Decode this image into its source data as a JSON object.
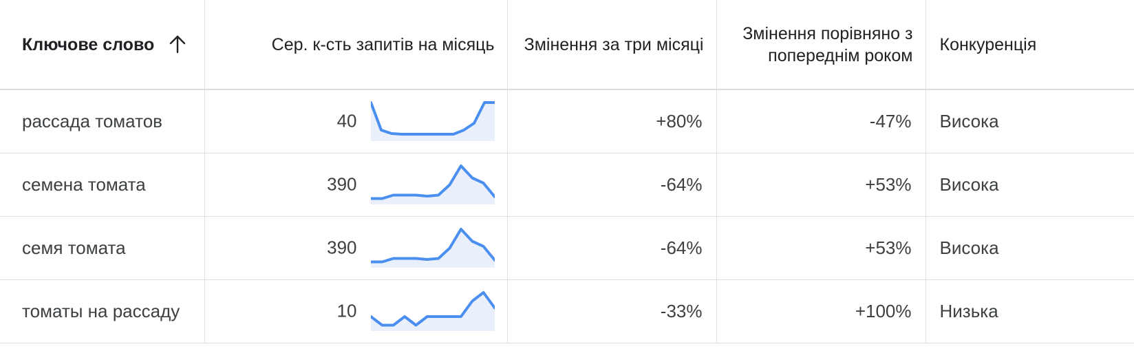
{
  "table": {
    "headers": {
      "keyword": "Ключове слово",
      "volume": "Сер. к-сть запитів на місяць",
      "three_month": "Змінення за три місяці",
      "yoy": "Змінення порівняно з попереднім роком",
      "competition": "Конкуренція"
    },
    "sort_icon": "arrow-up-icon",
    "rows": [
      {
        "keyword": "рассада томатов",
        "volume": "40",
        "trend": [
          100,
          20,
          10,
          8,
          8,
          8,
          8,
          8,
          8,
          20,
          40,
          100,
          100
        ],
        "three_month": "+80%",
        "yoy": "-47%",
        "competition": "Висока"
      },
      {
        "keyword": "семена томата",
        "volume": "390",
        "trend": [
          5,
          5,
          15,
          15,
          15,
          12,
          15,
          45,
          100,
          65,
          50,
          10
        ],
        "three_month": "-64%",
        "yoy": "+53%",
        "competition": "Висока"
      },
      {
        "keyword": "семя томата",
        "volume": "390",
        "trend": [
          5,
          5,
          15,
          15,
          15,
          12,
          15,
          45,
          100,
          65,
          50,
          10
        ],
        "three_month": "-64%",
        "yoy": "+53%",
        "competition": "Висока"
      },
      {
        "keyword": "томаты на рассаду",
        "volume": "10",
        "trend": [
          30,
          5,
          5,
          30,
          5,
          30,
          30,
          30,
          30,
          75,
          100,
          55
        ],
        "three_month": "-33%",
        "yoy": "+100%",
        "competition": "Низька"
      }
    ]
  },
  "colors": {
    "sparkline_line": "#4a8ff0",
    "sparkline_fill": "#e9f0fc",
    "grid": "#e0e0e0",
    "text": "#202124"
  }
}
